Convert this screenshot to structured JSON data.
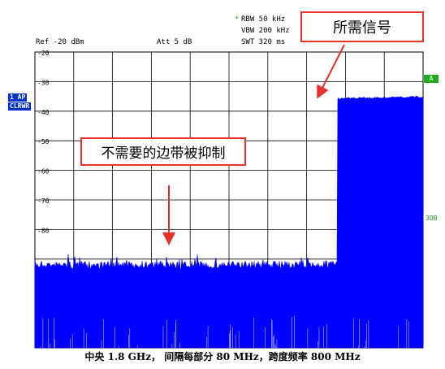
{
  "header": {
    "ref": "Ref -20 dBm",
    "att": "Att  5 dB",
    "rbw": "RBW 50 kHz",
    "vbw": "VBW 200 kHz",
    "swt": "SWT 320 ms",
    "rbw_marker": "*"
  },
  "side": {
    "trace_label_1": "1 AP",
    "trace_label_2": "CLRWR",
    "right_marker": "A",
    "right_3db": "3DB"
  },
  "callouts": {
    "desired_signal": "所需信号",
    "suppressed_sidebands": "不需要的边带被抑制"
  },
  "caption": "中央 1.8 GHz， 间隔每部分 80 MHz，跨度频率 800 MHz",
  "colors": {
    "trace": "#0000ff",
    "callout_border": "#e8322b",
    "grid": "#000000",
    "badge": "#0033cc"
  },
  "chart_data": {
    "type": "area",
    "y_tick_labels": [
      "-20",
      "-30",
      "-40",
      "-50",
      "-60",
      "-70",
      "-80"
    ],
    "ylim": [
      -20,
      -120
    ],
    "x_divisions": 10,
    "noise_floor_db": -92,
    "signal_band_db": -35,
    "signal_band_divisions": [
      7.8,
      10.6
    ],
    "grid": true
  }
}
